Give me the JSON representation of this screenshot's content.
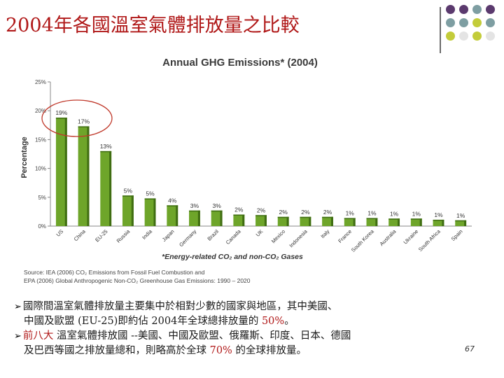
{
  "slide": {
    "title": "2004年各國溫室氣體排放量之比較",
    "page_number": "67",
    "colors": {
      "title": "#b01818",
      "bar": "#6ea52a",
      "bar_dark": "#3f6d12",
      "highlight_circle": "#c0392b",
      "dots": [
        "#5b3a6e",
        "#5b3a6e",
        "#7e9ea2",
        "#5b3a6e",
        "#7e9ea2",
        "#7e9ea2",
        "#c3cc3a",
        "#7e9ea2",
        "#c3cc3a",
        "#e4e4e4",
        "#c3cc3a",
        "#e4e4e4"
      ]
    },
    "bullets": [
      {
        "lines": [
          [
            "國際間溫室氣體排放量主要集中於相對少數的國家與地區，其中美國、"
          ],
          [
            "中國及歐盟 (EU-25)即約佔 2004年全球總排放量的 ",
            {
              "hl": "50%"
            },
            "。"
          ]
        ]
      },
      {
        "lines": [
          [
            {
              "hl": "前八大"
            },
            " 溫室氣體排放國 --美國、中國及歐盟、俄羅斯、印度、日本、德國"
          ],
          [
            "及巴西等國之排放量總和，則略高於全球 ",
            {
              "hl": "70%"
            },
            " 的全球排放量。"
          ]
        ]
      }
    ]
  },
  "chart_data": {
    "type": "bar",
    "title": "Annual GHG Emissions* (2004)",
    "ylabel": "Percentage",
    "ylim": [
      0,
      25
    ],
    "yticks": [
      "0%",
      "5%",
      "10%",
      "15%",
      "20%",
      "25%"
    ],
    "grid": false,
    "categories": [
      "US",
      "China",
      "EU-25",
      "Russia",
      "India",
      "Japan",
      "Germany",
      "Brazil",
      "Canada",
      "UK",
      "Mexico",
      "Indonesia",
      "Italy",
      "France",
      "South Korea",
      "Australia",
      "Ukraine",
      "South Africa",
      "Spain"
    ],
    "values": [
      18.8,
      17.3,
      13.0,
      5.3,
      4.8,
      3.6,
      2.7,
      2.7,
      2.0,
      1.9,
      1.6,
      1.6,
      1.6,
      1.4,
      1.4,
      1.3,
      1.3,
      1.1,
      1.0
    ],
    "data_labels": [
      "19%",
      "17%",
      "13%",
      "5%",
      "5%",
      "4%",
      "3%",
      "3%",
      "2%",
      "2%",
      "2%",
      "2%",
      "2%",
      "1%",
      "1%",
      "1%",
      "1%",
      "1%",
      "1%"
    ],
    "note": "*Energy-related CO₂ and non-CO₂ Gases",
    "source_lines": [
      "Source: IEA (2006) CO₂ Emissions from Fossil Fuel Combustion and",
      "EPA (2006) Global Anthropogenic Non-CO₂ Greenhouse Gas Emissions: 1990 – 2020"
    ]
  }
}
